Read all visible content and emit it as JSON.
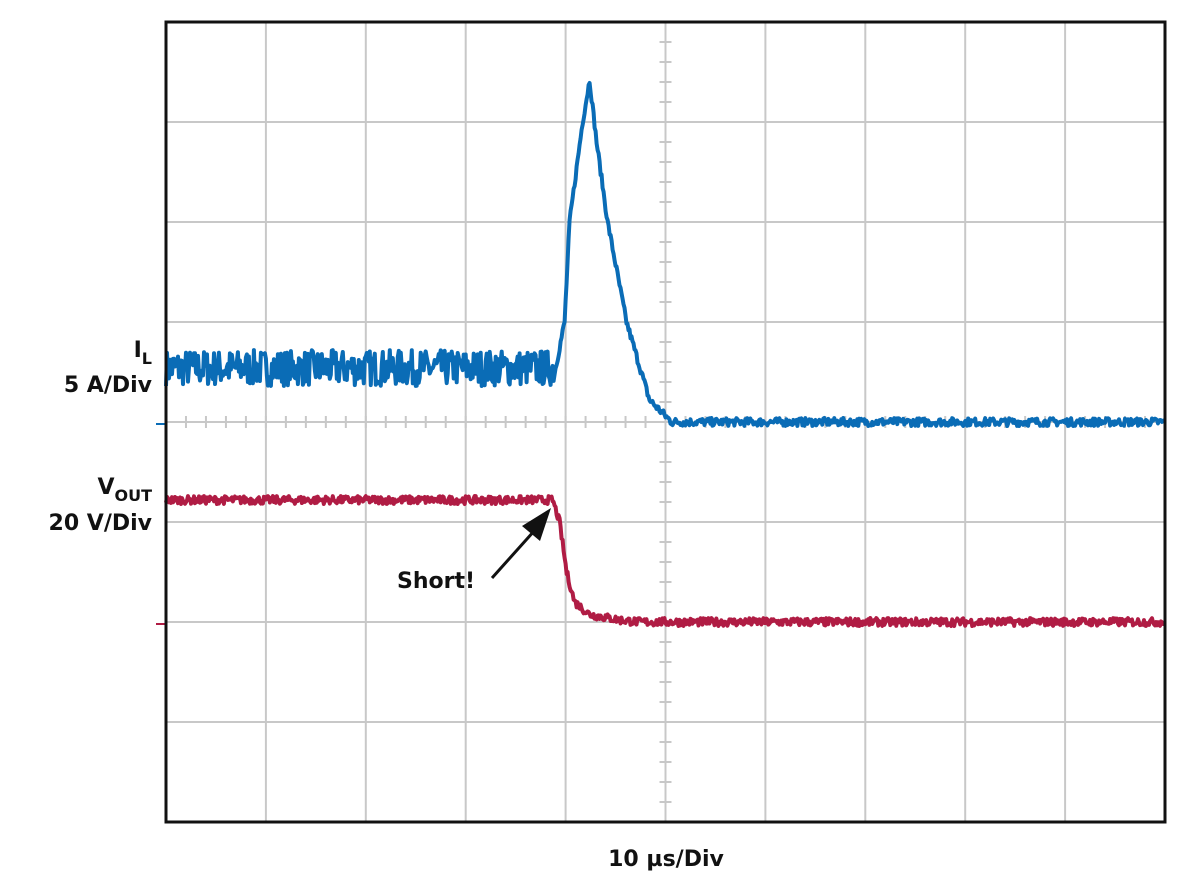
{
  "chart_data": {
    "type": "line",
    "title": "",
    "xlabel": "10 µs/Div",
    "x_units": "µs",
    "xlim": [
      0,
      100
    ],
    "x_divisions": 10,
    "y_divisions": 8,
    "grid": true,
    "annotation": {
      "text": "Short!",
      "time": 38.7,
      "target_series": "VOUT"
    },
    "series": [
      {
        "name": "IL",
        "label_main": "I",
        "label_sub": "L",
        "scale_label": "5 A/Div",
        "units": "A",
        "volts_per_div": 5,
        "ground_division": 4,
        "color": "#0a6cb6",
        "noise": 0.9,
        "noise_until": 39.0,
        "noise_after": 0.2,
        "points": [
          [
            0,
            2.7
          ],
          [
            39.0,
            2.7
          ],
          [
            39.9,
            5.0
          ],
          [
            40.4,
            10
          ],
          [
            41.7,
            15
          ],
          [
            42.4,
            17.1
          ],
          [
            43.1,
            14
          ],
          [
            44.2,
            10
          ],
          [
            46.1,
            5
          ],
          [
            48.4,
            1.1
          ],
          [
            50.6,
            0
          ],
          [
            100,
            0
          ]
        ]
      },
      {
        "name": "VOUT",
        "label_main": "V",
        "label_sub": "OUT",
        "scale_label": "20 V/Div",
        "units": "V",
        "volts_per_div": 20,
        "ground_division": 2,
        "color": "#b01c44",
        "noise": 0.8,
        "noise_until": 100,
        "noise_after": 0.8,
        "points": [
          [
            0,
            24.4
          ],
          [
            38.7,
            24.4
          ],
          [
            39.4,
            20
          ],
          [
            40.1,
            10
          ],
          [
            40.9,
            4
          ],
          [
            42.4,
            1.5
          ],
          [
            45.4,
            0.4
          ],
          [
            47.4,
            0
          ],
          [
            100,
            0
          ]
        ]
      }
    ]
  }
}
